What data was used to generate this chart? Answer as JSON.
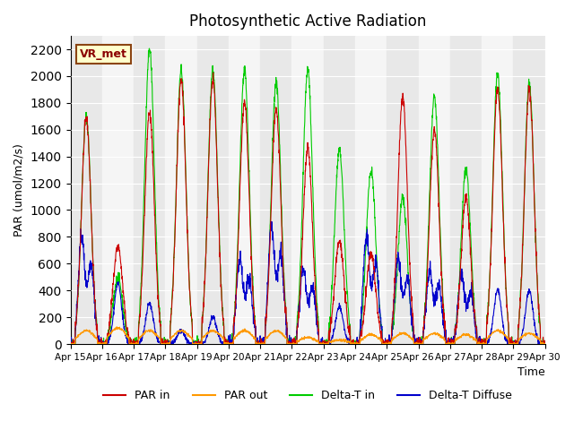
{
  "title": "Photosynthetic Active Radiation",
  "xlabel": "Time",
  "ylabel": "PAR (umol/m2/s)",
  "ylim": [
    0,
    2300
  ],
  "yticks": [
    0,
    200,
    400,
    600,
    800,
    1000,
    1200,
    1400,
    1600,
    1800,
    2000,
    2200
  ],
  "x_tick_labels": [
    "Apr 15",
    "Apr 16",
    "Apr 17",
    "Apr 18",
    "Apr 19",
    "Apr 20",
    "Apr 21",
    "Apr 22",
    "Apr 23",
    "Apr 24",
    "Apr 25",
    "Apr 26",
    "Apr 27",
    "Apr 28",
    "Apr 29",
    "Apr 30"
  ],
  "colors": {
    "PAR_in": "#cc0000",
    "PAR_out": "#ff9900",
    "Delta_T_in": "#00cc00",
    "Delta_T_Diffuse": "#0000cc",
    "background_light": "#e8e8e8",
    "background_white": "#f5f5f5"
  },
  "legend_label": "VR_met",
  "series_labels": [
    "PAR in",
    "PAR out",
    "Delta-T in",
    "Delta-T Diffuse"
  ],
  "day_peaks_green": [
    1700,
    500,
    2200,
    2050,
    2050,
    2050,
    1950,
    2050,
    1450,
    1300,
    1100,
    1850,
    1300,
    2020,
    1950
  ],
  "day_peaks_red": [
    1680,
    730,
    1730,
    1970,
    1970,
    1800,
    1750,
    1460,
    770,
    680,
    1840,
    1600,
    1100,
    1900,
    1900
  ],
  "day_peaks_orange": [
    100,
    120,
    100,
    100,
    100,
    100,
    100,
    50,
    30,
    70,
    80,
    80,
    70,
    100,
    80
  ],
  "day_peaks_blue": [
    1000,
    450,
    300,
    100,
    200,
    800,
    1100,
    700,
    280,
    1000,
    800,
    700,
    650,
    400,
    400
  ]
}
